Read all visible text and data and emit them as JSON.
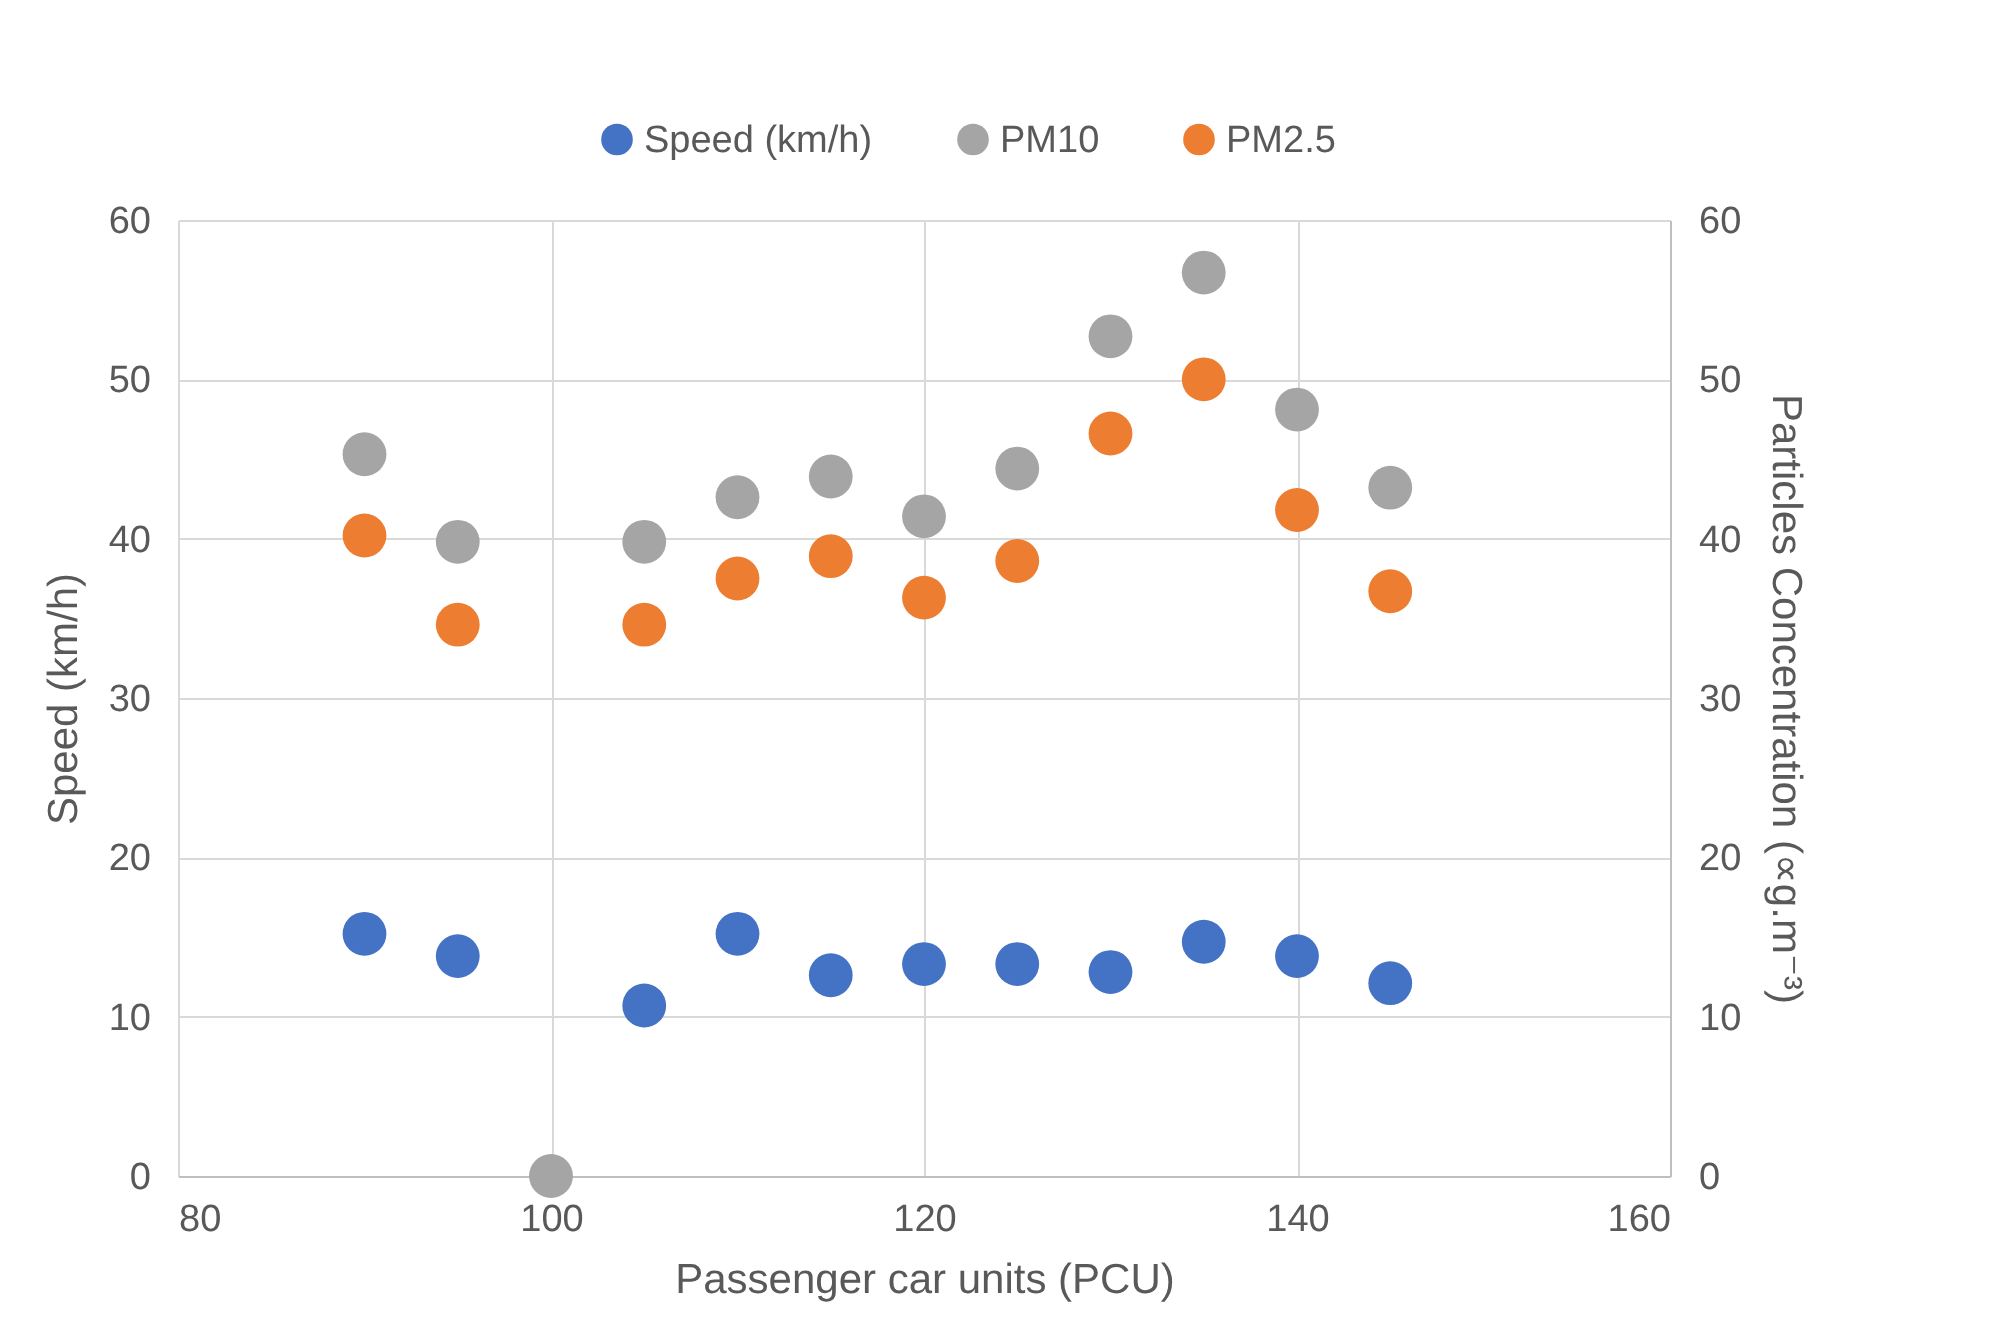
{
  "chart_data": {
    "type": "scatter",
    "xlabel": "Passenger car units (PCU)",
    "ylabel": "Speed (km/h)",
    "y2label": "Particles Concentration (∝g.m⁻³)",
    "x": [
      90,
      95,
      100,
      105,
      110,
      115,
      120,
      125,
      130,
      135,
      140,
      145
    ],
    "series": [
      {
        "name": "Speed (km/h)",
        "color": "#4472c4",
        "values": [
          15.2,
          13.8,
          null,
          10.7,
          15.2,
          12.6,
          13.3,
          13.3,
          12.8,
          14.7,
          13.8,
          12.1
        ]
      },
      {
        "name": "PM10",
        "color": "#a5a5a5",
        "axis": "y2",
        "values": [
          45.3,
          39.8,
          0,
          39.8,
          42.6,
          43.9,
          41.4,
          44.4,
          52.7,
          56.7,
          48.1,
          43.2
        ]
      },
      {
        "name": "PM2.5",
        "color": "#ed7d31",
        "axis": "y2",
        "values": [
          40.2,
          34.6,
          null,
          34.6,
          37.5,
          38.9,
          36.3,
          38.6,
          46.6,
          50.0,
          41.8,
          36.7
        ]
      }
    ],
    "xlim": [
      80,
      160
    ],
    "xticks": [
      80,
      100,
      120,
      140,
      160
    ],
    "ylim": [
      0,
      60
    ],
    "yticks": [
      0,
      10,
      20,
      30,
      40,
      50,
      60
    ],
    "y2lim": [
      0,
      60
    ],
    "y2ticks": [
      0,
      10,
      20,
      30,
      40,
      50,
      60
    ],
    "grid": true,
    "legend": "top",
    "marker": "circle"
  }
}
